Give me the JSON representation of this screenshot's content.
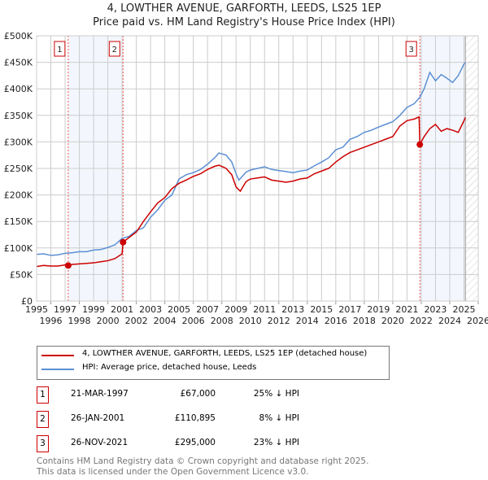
{
  "chart_data": {
    "type": "line",
    "title": "4, LOWTHER AVENUE, GARFORTH, LEEDS, LS25 1EP",
    "subtitle": "Price paid vs. HM Land Registry's House Price Index (HPI)",
    "xlim": [
      1995,
      2026
    ],
    "ylim": [
      0,
      500000
    ],
    "x_ticks": [
      "1995",
      "1996",
      "1997",
      "1998",
      "1999",
      "2000",
      "2001",
      "2002",
      "2003",
      "2004",
      "2005",
      "2006",
      "2007",
      "2008",
      "2009",
      "2010",
      "2011",
      "2012",
      "2013",
      "2014",
      "2015",
      "2016",
      "2017",
      "2018",
      "2019",
      "2020",
      "2021",
      "2022",
      "2023",
      "2024",
      "2025",
      "2026"
    ],
    "y_ticks": [
      {
        "v": 0,
        "label": "£0"
      },
      {
        "v": 50000,
        "label": "£50K"
      },
      {
        "v": 100000,
        "label": "£100K"
      },
      {
        "v": 150000,
        "label": "£150K"
      },
      {
        "v": 200000,
        "label": "£200K"
      },
      {
        "v": 250000,
        "label": "£250K"
      },
      {
        "v": 300000,
        "label": "£300K"
      },
      {
        "v": 350000,
        "label": "£350K"
      },
      {
        "v": 400000,
        "label": "£400K"
      },
      {
        "v": 450000,
        "label": "£450K"
      },
      {
        "v": 500000,
        "label": "£500K"
      }
    ],
    "grid": true,
    "data_end": 2025.1,
    "series": [
      {
        "name": "4, LOWTHER AVENUE, GARFORTH, LEEDS, LS25 1EP (detached house)",
        "color": "#cc0000",
        "x": [
          1995,
          1995.5,
          1996,
          1996.5,
          1997.0,
          1997.22,
          1997.5,
          1998,
          1998.5,
          1999,
          1999.5,
          2000,
          2000.5,
          2001.0,
          2001.07,
          2001.5,
          2002,
          2002.5,
          2003,
          2003.5,
          2004,
          2004.5,
          2005,
          2005.5,
          2006,
          2006.5,
          2007,
          2007.5,
          2007.8,
          2008.3,
          2008.7,
          2009.0,
          2009.3,
          2009.7,
          2010,
          2010.5,
          2011,
          2011.5,
          2012,
          2012.5,
          2013,
          2013.5,
          2014,
          2014.5,
          2015,
          2015.5,
          2016,
          2016.5,
          2017,
          2017.5,
          2018,
          2018.5,
          2019,
          2019.5,
          2020,
          2020.5,
          2021,
          2021.5,
          2021.85,
          2021.9,
          2022.2,
          2022.6,
          2023.0,
          2023.4,
          2023.8,
          2024.2,
          2024.6,
          2025.0,
          2025.1
        ],
        "y": [
          65000,
          67000,
          66000,
          66000,
          68000,
          67000,
          69000,
          70000,
          71000,
          72000,
          74000,
          76000,
          80000,
          89000,
          110895,
          120000,
          130000,
          150000,
          168000,
          185000,
          195000,
          212000,
          222000,
          228000,
          235000,
          240000,
          248000,
          254000,
          256000,
          250000,
          238000,
          215000,
          207000,
          225000,
          230000,
          232000,
          234000,
          228000,
          226000,
          224000,
          226000,
          230000,
          232000,
          240000,
          245000,
          250000,
          262000,
          272000,
          280000,
          285000,
          290000,
          295000,
          300000,
          305000,
          310000,
          330000,
          340000,
          343000,
          347000,
          295000,
          310000,
          325000,
          333000,
          320000,
          325000,
          322000,
          318000,
          340000,
          346000
        ]
      },
      {
        "name": "HPI: Average price, detached house, Leeds",
        "color": "#5b8fd4",
        "x": [
          1995,
          1995.5,
          1996,
          1996.5,
          1997,
          1997.5,
          1998,
          1998.5,
          1999,
          1999.5,
          2000,
          2000.5,
          2001,
          2001.5,
          2002,
          2002.5,
          2003,
          2003.5,
          2004,
          2004.5,
          2005,
          2005.5,
          2006,
          2006.5,
          2007,
          2007.5,
          2007.8,
          2008.3,
          2008.7,
          2009.0,
          2009.2,
          2009.7,
          2010,
          2010.5,
          2011,
          2011.5,
          2012,
          2012.5,
          2013,
          2013.5,
          2014,
          2014.5,
          2015,
          2015.5,
          2016,
          2016.5,
          2017,
          2017.5,
          2018,
          2018.5,
          2019,
          2019.5,
          2020,
          2020.5,
          2021,
          2021.5,
          2021.9,
          2022.2,
          2022.6,
          2023.0,
          2023.4,
          2023.8,
          2024.2,
          2024.6,
          2025.0,
          2025.1
        ],
        "y": [
          88000,
          89000,
          86000,
          87000,
          90000,
          91000,
          93000,
          93000,
          96000,
          97000,
          101000,
          106000,
          118000,
          122000,
          133000,
          138000,
          158000,
          172000,
          190000,
          200000,
          230000,
          238000,
          242000,
          248000,
          258000,
          270000,
          279000,
          275000,
          262000,
          240000,
          228000,
          243000,
          247000,
          250000,
          253000,
          248000,
          246000,
          244000,
          242000,
          245000,
          247000,
          255000,
          262000,
          270000,
          285000,
          290000,
          305000,
          310000,
          318000,
          322000,
          328000,
          333000,
          338000,
          350000,
          365000,
          372000,
          384000,
          400000,
          431000,
          415000,
          427000,
          420000,
          412000,
          425000,
          447000,
          449000
        ]
      }
    ],
    "sales": [
      {
        "n": "1",
        "x": 1997.22,
        "y": 67000,
        "date": "21-MAR-1997",
        "price": "£67,000",
        "hpi": "25% ↓ HPI"
      },
      {
        "n": "2",
        "x": 2001.07,
        "y": 110895,
        "date": "26-JAN-2001",
        "price": "£110,895",
        "hpi": "8% ↓ HPI"
      },
      {
        "n": "3",
        "x": 2021.9,
        "y": 295000,
        "date": "26-NOV-2021",
        "price": "£295,000",
        "hpi": "23% ↓ HPI"
      }
    ],
    "shade_ranges": [
      [
        1997.22,
        2001.07
      ],
      [
        2021.9,
        2025.1
      ]
    ]
  },
  "legend": {
    "red": "4, LOWTHER AVENUE, GARFORTH, LEEDS, LS25 1EP (detached house)",
    "blue": "HPI: Average price, detached house, Leeds"
  },
  "footer": {
    "line1": "Contains HM Land Registry data © Crown copyright and database right 2025.",
    "line2": "This data is licensed under the Open Government Licence v3.0."
  }
}
